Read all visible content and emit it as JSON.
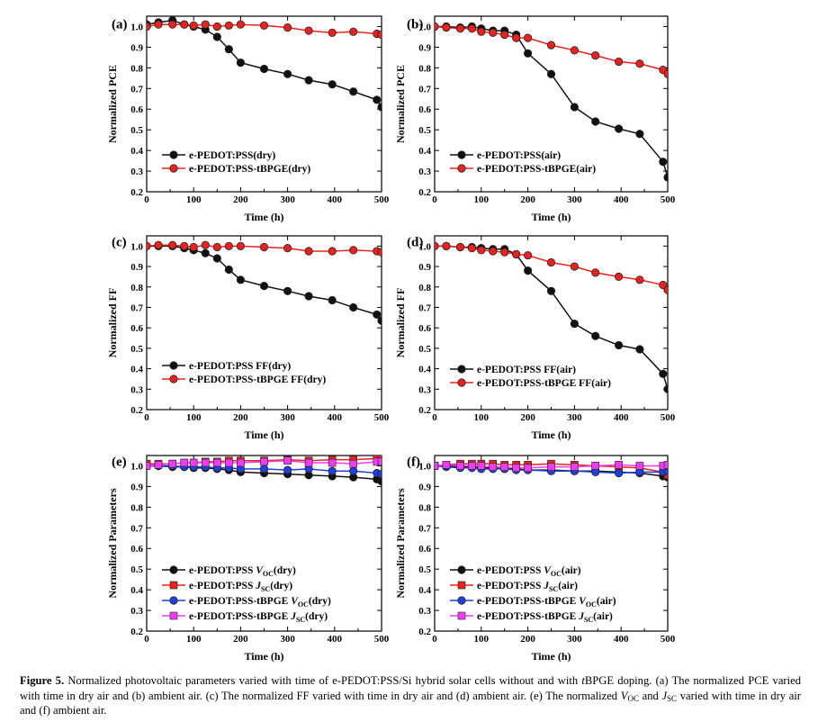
{
  "colors": {
    "black_series": "#111111",
    "red_series": "#e8231f",
    "blue_series": "#1f3fe0",
    "magenta_series": "#f03cf0"
  },
  "panels": [
    {
      "id": "a",
      "label": "(a)",
      "ylabel": "Normalized PCE",
      "xlabel": "Time (h)",
      "legend": [
        {
          "text": "e-PEDOT:PSS(dry)",
          "color": "#111111",
          "marker": "circle"
        },
        {
          "text": "e-PEDOT:PSS-tBPGE(dry)",
          "color": "#e8231f",
          "marker": "circle"
        }
      ]
    },
    {
      "id": "b",
      "label": "(b)",
      "ylabel": "Normalized PCE",
      "xlabel": "Time (h)",
      "legend": [
        {
          "text": "e-PEDOT:PSS(air)",
          "color": "#111111",
          "marker": "circle"
        },
        {
          "text": "e-PEDOT:PSS-tBPGE(air)",
          "color": "#e8231f",
          "marker": "circle"
        }
      ]
    },
    {
      "id": "c",
      "label": "(c)",
      "ylabel": "Normalized FF",
      "xlabel": "Time (h)",
      "legend": [
        {
          "text": "e-PEDOT:PSS FF(dry)",
          "color": "#111111",
          "marker": "circle"
        },
        {
          "text": "e-PEDOT:PSS-tBPGE FF(dry)",
          "color": "#e8231f",
          "marker": "circle"
        }
      ]
    },
    {
      "id": "d",
      "label": "(d)",
      "ylabel": "Normalized FF",
      "xlabel": "Time (h)",
      "legend": [
        {
          "text": "e-PEDOT:PSS FF(air)",
          "color": "#111111",
          "marker": "circle"
        },
        {
          "text": "e-PEDOT:PSS-tBPGE FF(air)",
          "color": "#e8231f",
          "marker": "circle"
        }
      ]
    },
    {
      "id": "e",
      "label": "(e)",
      "ylabel": "Normalized Parameters",
      "xlabel": "Time (h)",
      "legend": [
        {
          "pre": "e-PEDOT:PSS ",
          "main": "V",
          "sub": "OC",
          "post": "(dry)",
          "italic": true,
          "color": "#111111",
          "marker": "circle"
        },
        {
          "pre": "e-PEDOT:PSS ",
          "main": "J",
          "sub": "SC",
          "post": "(dry)",
          "italic": true,
          "color": "#e8231f",
          "marker": "square"
        },
        {
          "pre": "e-PEDOT:PSS-tBPGE ",
          "main": "V",
          "sub": "OC",
          "post": "(dry)",
          "italic": true,
          "color": "#1f3fe0",
          "marker": "circle"
        },
        {
          "pre": "e-PEDOT:PSS-tBPGE ",
          "main": "J",
          "sub": "SC",
          "post": "(dry)",
          "italic": true,
          "color": "#f03cf0",
          "marker": "square"
        }
      ]
    },
    {
      "id": "f",
      "label": "(f)",
      "ylabel": "Normalized Parameters",
      "xlabel": "Time (h)",
      "legend": [
        {
          "pre": "e-PEDOT:PSS ",
          "main": "V",
          "sub": "OC",
          "post": "(air)",
          "italic": true,
          "color": "#111111",
          "marker": "circle"
        },
        {
          "pre": "e-PEDOT:PSS ",
          "main": "J",
          "sub": "SC",
          "post": "(air)",
          "italic": true,
          "color": "#e8231f",
          "marker": "square"
        },
        {
          "pre": "e-PEDOT:PSS-tBPGE ",
          "main": "V",
          "sub": "OC",
          "post": "(air)",
          "italic": true,
          "color": "#1f3fe0",
          "marker": "circle"
        },
        {
          "pre": "e-PEDOT:PSS-tBPGE ",
          "main": "J",
          "sub": "SC",
          "post": "(air)",
          "italic": true,
          "color": "#f03cf0",
          "marker": "square"
        }
      ]
    }
  ],
  "chart_data": [
    {
      "panel": "a",
      "type": "line",
      "title": "(a)",
      "xlabel": "Time (h)",
      "ylabel": "Normalized PCE",
      "xlim": [
        0,
        500
      ],
      "ylim": [
        0.2,
        1.05
      ],
      "xticks": [
        "0",
        "100",
        "200",
        "300",
        "400",
        "500"
      ],
      "yticks": [
        "0.2",
        "0.3",
        "0.4",
        "0.5",
        "0.6",
        "0.7",
        "0.8",
        "0.9",
        "1.0"
      ],
      "series": [
        {
          "name": "e-PEDOT:PSS(dry)",
          "marker": "circle",
          "color": "#111111",
          "x": [
            0,
            25,
            55,
            80,
            100,
            125,
            150,
            175,
            200,
            250,
            300,
            345,
            395,
            440,
            490,
            500
          ],
          "y": [
            1.01,
            1.02,
            1.03,
            1.01,
            1.0,
            0.985,
            0.95,
            0.89,
            0.825,
            0.795,
            0.77,
            0.74,
            0.72,
            0.685,
            0.645,
            0.61
          ]
        },
        {
          "name": "e-PEDOT:PSS-tBPGE(dry)",
          "marker": "circle",
          "color": "#e8231f",
          "x": [
            0,
            25,
            55,
            80,
            100,
            125,
            150,
            175,
            200,
            250,
            300,
            345,
            395,
            440,
            490,
            500
          ],
          "y": [
            1.0,
            1.01,
            1.01,
            1.01,
            1.005,
            1.01,
            1.0,
            1.005,
            1.01,
            1.005,
            0.995,
            0.98,
            0.97,
            0.975,
            0.965,
            0.96
          ]
        }
      ]
    },
    {
      "panel": "b",
      "type": "line",
      "title": "(b)",
      "xlabel": "Time (h)",
      "ylabel": "Normalized PCE",
      "xlim": [
        0,
        500
      ],
      "ylim": [
        0.2,
        1.05
      ],
      "xticks": [
        "0",
        "100",
        "200",
        "300",
        "400",
        "500"
      ],
      "yticks": [
        "0.2",
        "0.3",
        "0.4",
        "0.5",
        "0.6",
        "0.7",
        "0.8",
        "0.9",
        "1.0"
      ],
      "series": [
        {
          "name": "e-PEDOT:PSS(air)",
          "marker": "circle",
          "color": "#111111",
          "x": [
            0,
            25,
            55,
            80,
            100,
            125,
            150,
            175,
            200,
            250,
            300,
            345,
            395,
            440,
            490,
            500
          ],
          "y": [
            1.0,
            1.0,
            0.995,
            1.0,
            0.99,
            0.98,
            0.98,
            0.96,
            0.87,
            0.77,
            0.61,
            0.54,
            0.505,
            0.48,
            0.345,
            0.27
          ]
        },
        {
          "name": "e-PEDOT:PSS-tBPGE(air)",
          "marker": "circle",
          "color": "#e8231f",
          "x": [
            0,
            25,
            55,
            80,
            100,
            125,
            150,
            175,
            200,
            250,
            300,
            345,
            395,
            440,
            490,
            500
          ],
          "y": [
            1.0,
            0.995,
            0.99,
            0.99,
            0.975,
            0.97,
            0.96,
            0.945,
            0.945,
            0.91,
            0.885,
            0.86,
            0.83,
            0.82,
            0.79,
            0.77
          ]
        }
      ]
    },
    {
      "panel": "c",
      "type": "line",
      "title": "(c)",
      "xlabel": "Time (h)",
      "ylabel": "Normalized FF",
      "xlim": [
        0,
        500
      ],
      "ylim": [
        0.2,
        1.05
      ],
      "xticks": [
        "0",
        "100",
        "200",
        "300",
        "400",
        "500"
      ],
      "yticks": [
        "0.2",
        "0.3",
        "0.4",
        "0.5",
        "0.6",
        "0.7",
        "0.8",
        "0.9",
        "1.0"
      ],
      "series": [
        {
          "name": "e-PEDOT:PSS FF(dry)",
          "marker": "circle",
          "color": "#111111",
          "x": [
            0,
            25,
            55,
            80,
            100,
            125,
            150,
            175,
            200,
            250,
            300,
            345,
            395,
            440,
            490,
            500
          ],
          "y": [
            1.0,
            1.0,
            1.0,
            0.99,
            0.98,
            0.965,
            0.94,
            0.885,
            0.835,
            0.805,
            0.78,
            0.755,
            0.735,
            0.7,
            0.665,
            0.635
          ]
        },
        {
          "name": "e-PEDOT:PSS-tBPGE FF(dry)",
          "marker": "circle",
          "color": "#e8231f",
          "x": [
            0,
            25,
            55,
            80,
            100,
            125,
            150,
            175,
            200,
            250,
            300,
            345,
            395,
            440,
            490,
            500
          ],
          "y": [
            1.0,
            1.005,
            1.005,
            1.0,
            0.995,
            1.005,
            0.995,
            1.0,
            1.0,
            0.995,
            0.99,
            0.975,
            0.975,
            0.98,
            0.975,
            0.97
          ]
        }
      ]
    },
    {
      "panel": "d",
      "type": "line",
      "title": "(d)",
      "xlabel": "Time (h)",
      "ylabel": "Normalized FF",
      "xlim": [
        0,
        500
      ],
      "ylim": [
        0.2,
        1.05
      ],
      "xticks": [
        "0",
        "100",
        "200",
        "300",
        "400",
        "500"
      ],
      "yticks": [
        "0.2",
        "0.3",
        "0.4",
        "0.5",
        "0.6",
        "0.7",
        "0.8",
        "0.9",
        "1.0"
      ],
      "series": [
        {
          "name": "e-PEDOT:PSS FF(air)",
          "marker": "circle",
          "color": "#111111",
          "x": [
            0,
            25,
            55,
            80,
            100,
            125,
            150,
            175,
            200,
            250,
            300,
            345,
            395,
            440,
            490,
            500
          ],
          "y": [
            1.0,
            1.0,
            0.995,
            0.995,
            0.99,
            0.985,
            0.985,
            0.96,
            0.88,
            0.78,
            0.62,
            0.56,
            0.515,
            0.495,
            0.375,
            0.3
          ]
        },
        {
          "name": "e-PEDOT:PSS-tBPGE FF(air)",
          "marker": "circle",
          "color": "#e8231f",
          "x": [
            0,
            25,
            55,
            80,
            100,
            125,
            150,
            175,
            200,
            250,
            300,
            345,
            395,
            440,
            490,
            500
          ],
          "y": [
            1.0,
            1.0,
            0.995,
            0.99,
            0.98,
            0.975,
            0.97,
            0.96,
            0.955,
            0.92,
            0.9,
            0.87,
            0.85,
            0.835,
            0.81,
            0.785
          ]
        }
      ]
    },
    {
      "panel": "e",
      "type": "line",
      "title": "(e)",
      "xlabel": "Time (h)",
      "ylabel": "Normalized Parameters",
      "xlim": [
        0,
        500
      ],
      "ylim": [
        0.2,
        1.05
      ],
      "xticks": [
        "0",
        "100",
        "200",
        "300",
        "400",
        "500"
      ],
      "yticks": [
        "0.2",
        "0.3",
        "0.4",
        "0.5",
        "0.6",
        "0.7",
        "0.8",
        "0.9",
        "1.0"
      ],
      "series": [
        {
          "name": "e-PEDOT:PSS VOC(dry)",
          "marker": "circle",
          "color": "#111111",
          "x": [
            0,
            25,
            55,
            80,
            100,
            125,
            150,
            175,
            200,
            250,
            300,
            345,
            395,
            440,
            490,
            500
          ],
          "y": [
            1.0,
            1.0,
            0.995,
            0.995,
            0.99,
            0.99,
            0.985,
            0.98,
            0.97,
            0.965,
            0.96,
            0.955,
            0.95,
            0.945,
            0.935,
            0.925
          ]
        },
        {
          "name": "e-PEDOT:PSS JSC(dry)",
          "marker": "square",
          "color": "#e8231f",
          "x": [
            0,
            25,
            55,
            80,
            100,
            125,
            150,
            175,
            200,
            250,
            300,
            345,
            395,
            440,
            490,
            500
          ],
          "y": [
            1.01,
            1.01,
            1.01,
            1.015,
            1.015,
            1.02,
            1.02,
            1.025,
            1.025,
            1.025,
            1.03,
            1.025,
            1.03,
            1.03,
            1.035,
            1.035
          ]
        },
        {
          "name": "e-PEDOT:PSS-tBPGE VOC(dry)",
          "marker": "circle",
          "color": "#1f3fe0",
          "x": [
            0,
            25,
            55,
            80,
            100,
            125,
            150,
            175,
            200,
            250,
            300,
            345,
            395,
            440,
            490,
            500
          ],
          "y": [
            1.0,
            1.0,
            1.0,
            0.995,
            0.995,
            0.995,
            0.99,
            0.99,
            0.985,
            0.985,
            0.98,
            0.985,
            0.975,
            0.975,
            0.965,
            0.96
          ]
        },
        {
          "name": "e-PEDOT:PSS-tBPGE JSC(dry)",
          "marker": "square",
          "color": "#f03cf0",
          "x": [
            0,
            25,
            55,
            80,
            100,
            125,
            150,
            175,
            200,
            250,
            300,
            345,
            395,
            440,
            490,
            500
          ],
          "y": [
            1.0,
            1.005,
            1.01,
            1.015,
            1.015,
            1.015,
            1.015,
            1.015,
            1.015,
            1.02,
            1.025,
            1.015,
            1.015,
            1.01,
            1.02,
            1.02
          ]
        }
      ]
    },
    {
      "panel": "f",
      "type": "line",
      "title": "(f)",
      "xlabel": "Time (h)",
      "ylabel": "Normalized Parameters",
      "xlim": [
        0,
        500
      ],
      "ylim": [
        0.2,
        1.05
      ],
      "xticks": [
        "0",
        "100",
        "200",
        "300",
        "400",
        "500"
      ],
      "yticks": [
        "0.2",
        "0.3",
        "0.4",
        "0.5",
        "0.6",
        "0.7",
        "0.8",
        "0.9",
        "1.0"
      ],
      "series": [
        {
          "name": "e-PEDOT:PSS VOC(air)",
          "marker": "circle",
          "color": "#111111",
          "x": [
            0,
            25,
            55,
            80,
            100,
            125,
            150,
            175,
            200,
            250,
            300,
            345,
            395,
            440,
            490,
            500
          ],
          "y": [
            1.0,
            1.0,
            0.995,
            0.995,
            0.99,
            0.99,
            0.985,
            0.985,
            0.98,
            0.98,
            0.975,
            0.975,
            0.97,
            0.965,
            0.95,
            0.945
          ]
        },
        {
          "name": "e-PEDOT:PSS JSC(air)",
          "marker": "square",
          "color": "#e8231f",
          "x": [
            0,
            25,
            55,
            80,
            100,
            125,
            150,
            175,
            200,
            250,
            300,
            345,
            395,
            440,
            490,
            500
          ],
          "y": [
            1.0,
            1.005,
            1.01,
            1.01,
            1.01,
            1.01,
            1.005,
            1.005,
            1.005,
            1.01,
            1.005,
            1.0,
            0.995,
            0.99,
            0.97,
            0.955
          ]
        },
        {
          "name": "e-PEDOT:PSS-tBPGE VOC(air)",
          "marker": "circle",
          "color": "#1f3fe0",
          "x": [
            0,
            25,
            55,
            80,
            100,
            125,
            150,
            175,
            200,
            250,
            300,
            345,
            395,
            440,
            490,
            500
          ],
          "y": [
            1.0,
            0.995,
            0.99,
            0.99,
            0.985,
            0.985,
            0.985,
            0.98,
            0.98,
            0.975,
            0.975,
            0.97,
            0.965,
            0.97,
            0.97,
            0.975
          ]
        },
        {
          "name": "e-PEDOT:PSS-tBPGE JSC(air)",
          "marker": "square",
          "color": "#f03cf0",
          "x": [
            0,
            25,
            55,
            80,
            100,
            125,
            150,
            175,
            200,
            250,
            300,
            345,
            395,
            440,
            490,
            500
          ],
          "y": [
            1.0,
            1.005,
            1.0,
            1.0,
            1.0,
            0.995,
            0.995,
            0.99,
            0.99,
            0.995,
            0.995,
            1.0,
            1.005,
            1.0,
            1.0,
            1.005
          ]
        }
      ]
    }
  ],
  "caption": {
    "label": "Figure 5.",
    "t1": " Normalized photovoltaic parameters varied with time of e-PEDOT:PSS/Si hybrid solar cells without and with ",
    "t2": "t",
    "t3": "BPGE doping. (a) The normalized PCE varied with time in dry air and (b) ambient air. (c) The normalized FF varied with time in dry air and (d) ambient air. (e) The normalized ",
    "v": "V",
    "v_sub": "OC",
    "t4": " and ",
    "j": "J",
    "j_sub": "SC",
    "t5": " varied with time in dry air and (f) ambient air."
  }
}
